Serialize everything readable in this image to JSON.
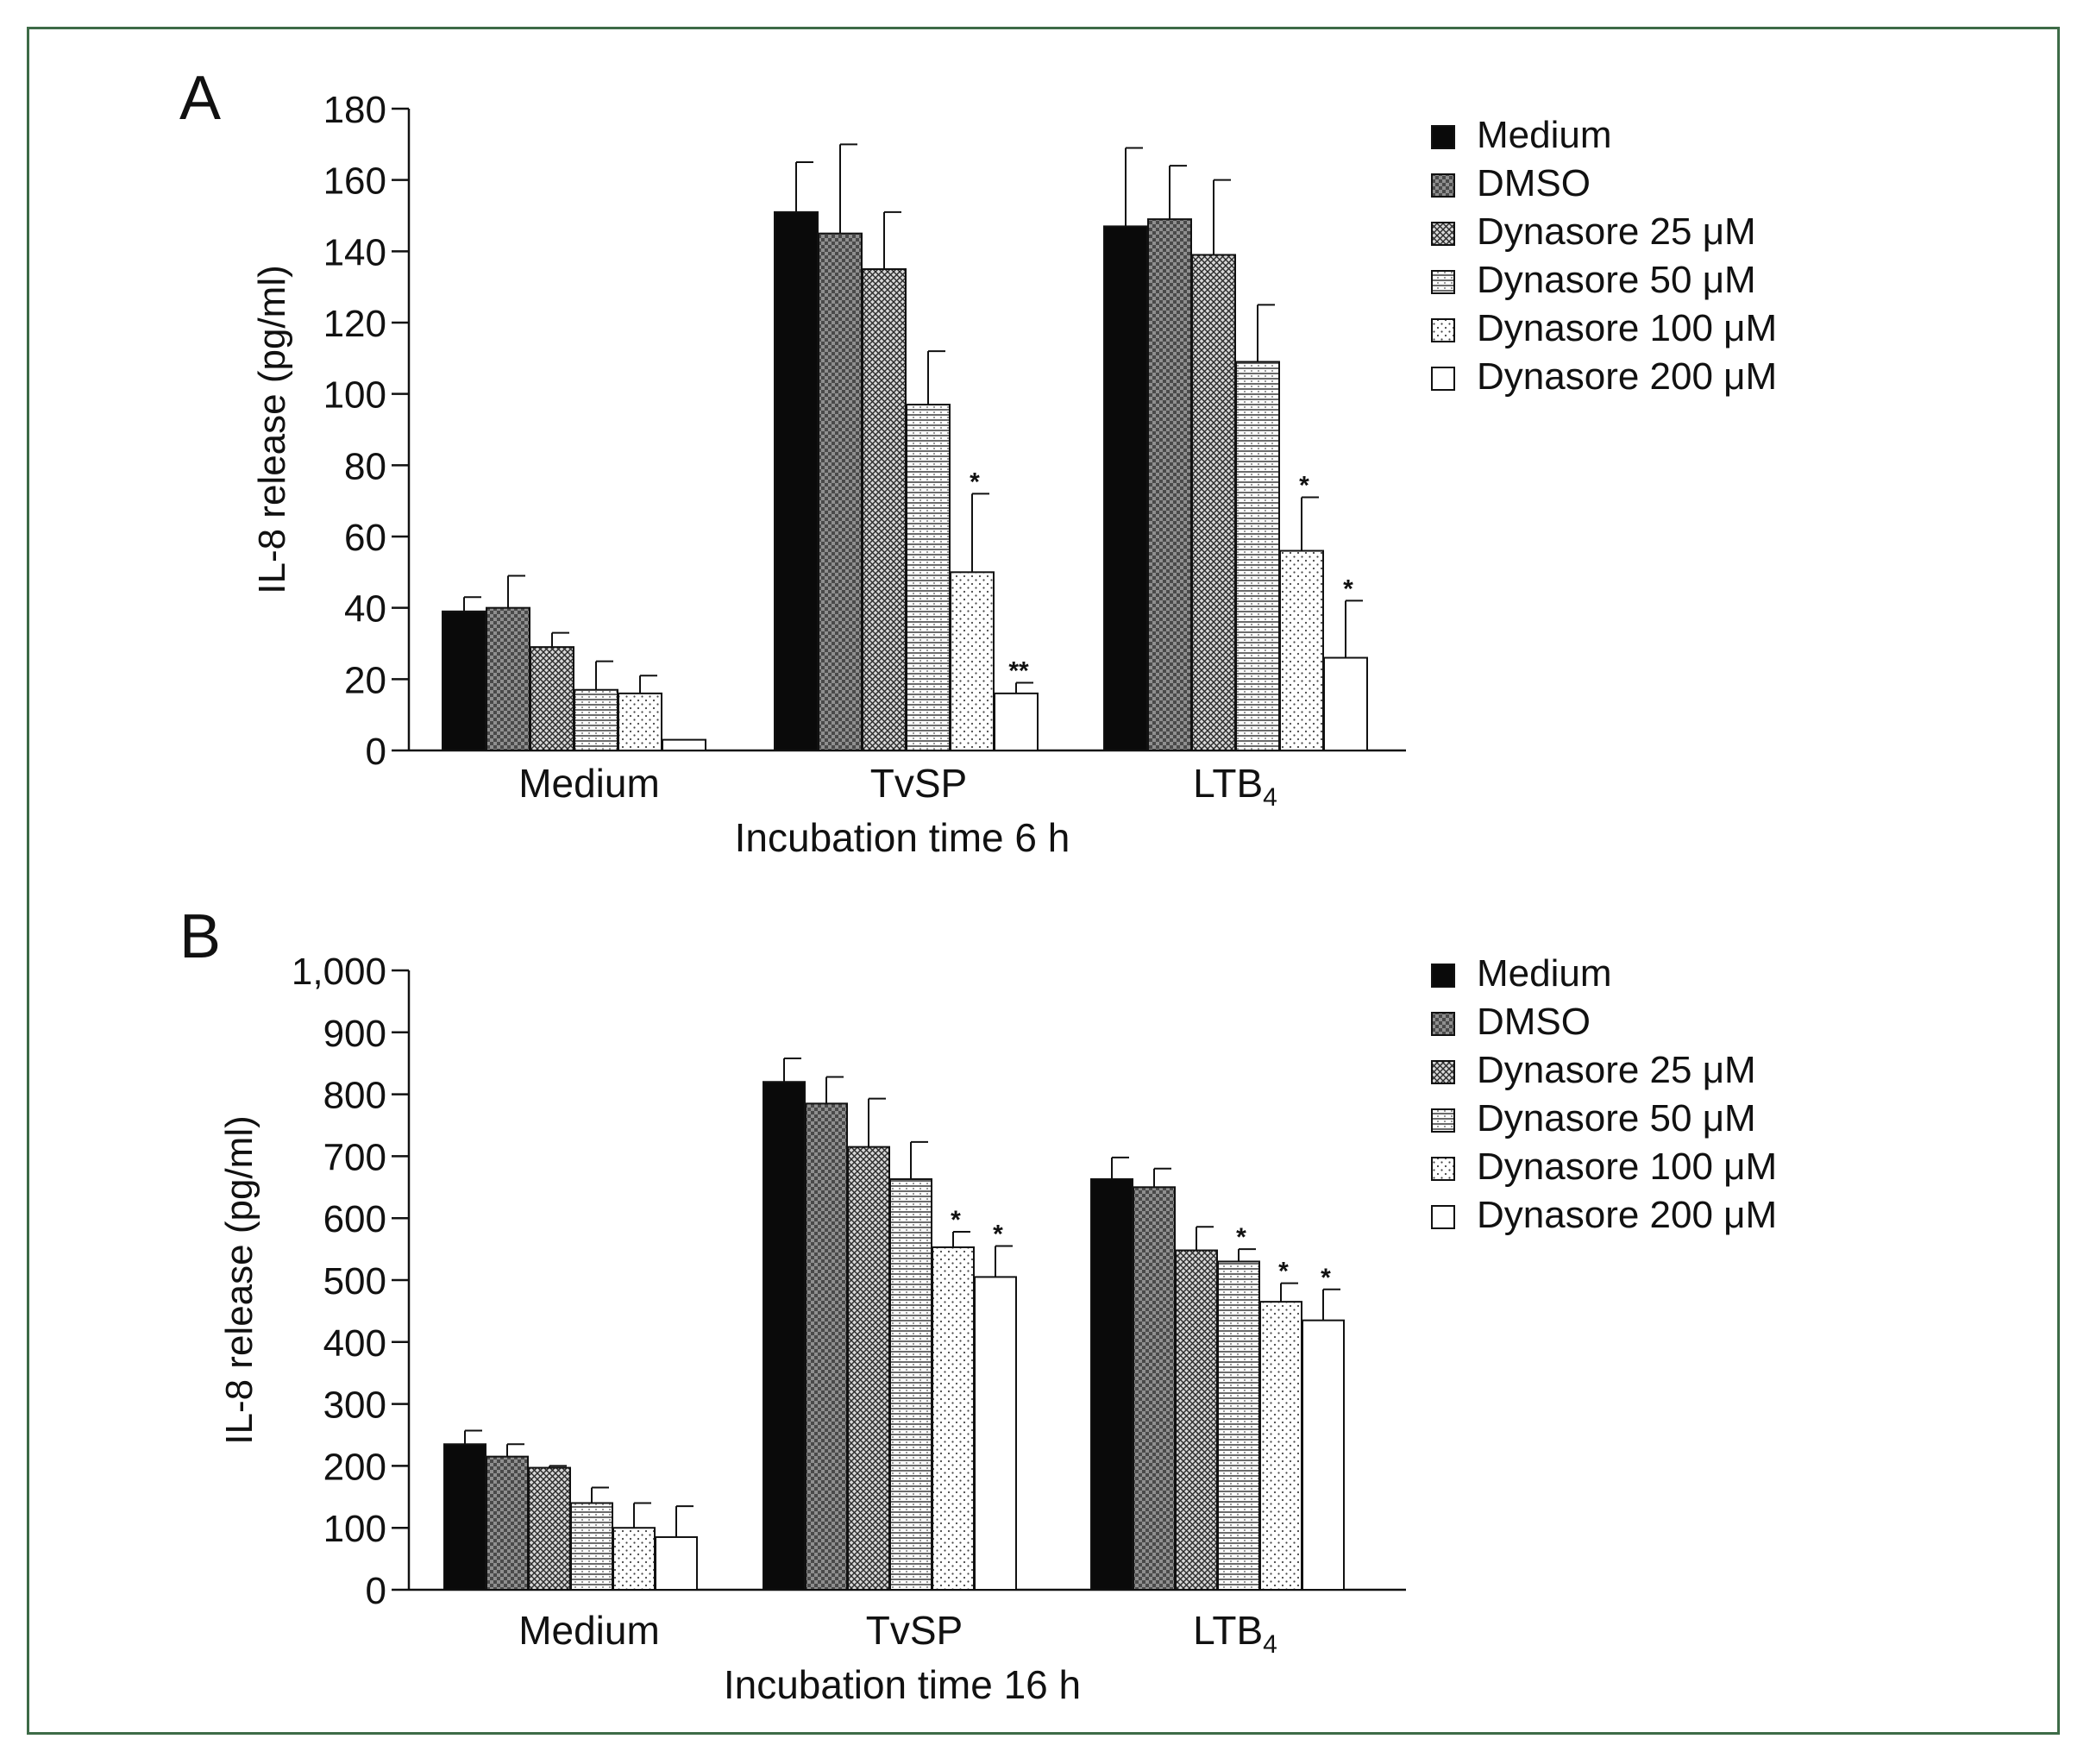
{
  "chart_data": [
    {
      "type": "bar",
      "panel_label": "A",
      "ylabel": "IL-8 release (pg/ml)",
      "xlabel": "Incubation time 6 h",
      "ylim": [
        0,
        180
      ],
      "yticks": [
        0,
        20,
        40,
        60,
        80,
        100,
        120,
        140,
        160,
        180
      ],
      "ytick_labels": [
        "0",
        "20",
        "40",
        "60",
        "80",
        "100",
        "120",
        "140",
        "160",
        "180"
      ],
      "categories": [
        "Medium",
        "TvSP",
        "LTB4"
      ],
      "category_labels": [
        {
          "main": "Medium",
          "sub": ""
        },
        {
          "main": "TvSP",
          "sub": ""
        },
        {
          "main": "LTB",
          "sub": "4"
        }
      ],
      "series": [
        {
          "name": "Medium",
          "values": [
            39,
            151,
            147
          ],
          "errors": [
            4,
            14,
            22
          ],
          "marks": [
            "",
            "",
            ""
          ]
        },
        {
          "name": "DMSO",
          "values": [
            40,
            145,
            149
          ],
          "errors": [
            9,
            25,
            15
          ],
          "marks": [
            "",
            "",
            ""
          ]
        },
        {
          "name": "Dynasore 25 μM",
          "values": [
            29,
            135,
            139
          ],
          "errors": [
            4,
            16,
            21
          ],
          "marks": [
            "",
            "",
            ""
          ]
        },
        {
          "name": "Dynasore 50 μM",
          "values": [
            17,
            97,
            109
          ],
          "errors": [
            8,
            15,
            16
          ],
          "marks": [
            "",
            "",
            ""
          ]
        },
        {
          "name": "Dynasore 100 μM",
          "values": [
            16,
            50,
            56
          ],
          "errors": [
            5,
            22,
            15
          ],
          "marks": [
            "",
            "*",
            "*"
          ]
        },
        {
          "name": "Dynasore 200 μM",
          "values": [
            3,
            16,
            26
          ],
          "errors": [
            0,
            3,
            16
          ],
          "marks": [
            "",
            "**",
            "*"
          ]
        }
      ],
      "legend_position": "top-right"
    },
    {
      "type": "bar",
      "panel_label": "B",
      "ylabel": "IL-8 release (pg/ml)",
      "xlabel": "Incubation time 16 h",
      "ylim": [
        0,
        1000
      ],
      "yticks": [
        0,
        100,
        200,
        300,
        400,
        500,
        600,
        700,
        800,
        900,
        1000
      ],
      "ytick_labels": [
        "0",
        "100",
        "200",
        "300",
        "400",
        "500",
        "600",
        "700",
        "800",
        "900",
        "1,000"
      ],
      "categories": [
        "Medium",
        "TvSP",
        "LTB4"
      ],
      "category_labels": [
        {
          "main": "Medium",
          "sub": ""
        },
        {
          "main": "TvSP",
          "sub": ""
        },
        {
          "main": "LTB",
          "sub": "4"
        }
      ],
      "series": [
        {
          "name": "Medium",
          "values": [
            235,
            820,
            663
          ],
          "errors": [
            22,
            38,
            35
          ],
          "marks": [
            "",
            "",
            ""
          ]
        },
        {
          "name": "DMSO",
          "values": [
            215,
            785,
            650
          ],
          "errors": [
            20,
            43,
            30
          ],
          "marks": [
            "",
            "",
            ""
          ]
        },
        {
          "name": "Dynasore 25 μM",
          "values": [
            197,
            715,
            548
          ],
          "errors": [
            3,
            78,
            38
          ],
          "marks": [
            "",
            "",
            ""
          ]
        },
        {
          "name": "Dynasore 50 μM",
          "values": [
            140,
            663,
            530
          ],
          "errors": [
            25,
            60,
            20
          ],
          "marks": [
            "",
            "",
            "*"
          ]
        },
        {
          "name": "Dynasore 100 μM",
          "values": [
            100,
            553,
            465
          ],
          "errors": [
            40,
            25,
            30
          ],
          "marks": [
            "",
            "*",
            "*"
          ]
        },
        {
          "name": "Dynasore 200 μM",
          "values": [
            85,
            505,
            435
          ],
          "errors": [
            50,
            50,
            50
          ],
          "marks": [
            "",
            "*",
            "*"
          ]
        }
      ],
      "legend_position": "top-right"
    }
  ]
}
